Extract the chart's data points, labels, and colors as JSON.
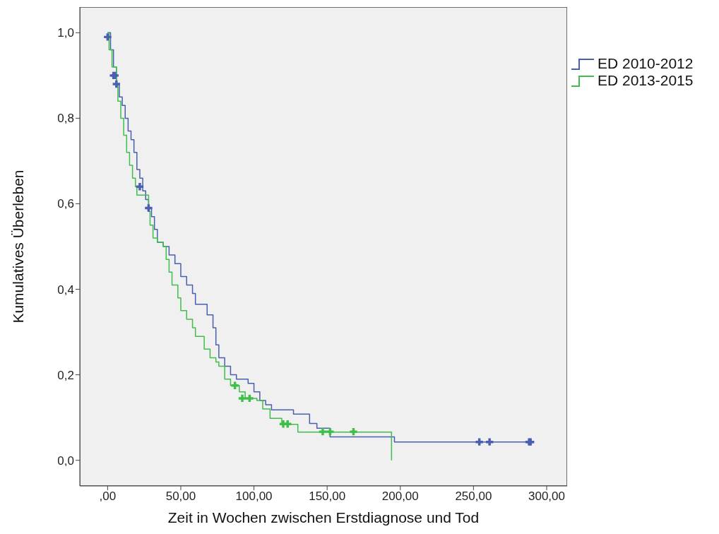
{
  "chart_data": {
    "type": "step",
    "xlabel": "Zeit in Wochen zwischen Erstdiagnose und Tod",
    "ylabel": "Kumulatives Überleben",
    "xlim": [
      -19,
      314
    ],
    "xticks": [
      {
        "value": 0,
        "label": ",00"
      },
      {
        "value": 50,
        "label": "50,00"
      },
      {
        "value": 100,
        "label": "100,00"
      },
      {
        "value": 150,
        "label": "150,00"
      },
      {
        "value": 200,
        "label": "200,00"
      },
      {
        "value": 250,
        "label": "250,00"
      },
      {
        "value": 300,
        "label": "300,00"
      }
    ],
    "ylim": [
      -0.06,
      1.06
    ],
    "yticks": [
      {
        "value": 0,
        "label": "0,0"
      },
      {
        "value": 0.2,
        "label": "0,2"
      },
      {
        "value": 0.4,
        "label": "0,4"
      },
      {
        "value": 0.6,
        "label": "0,6"
      },
      {
        "value": 0.8,
        "label": "0,8"
      },
      {
        "value": 1,
        "label": "1,0"
      }
    ],
    "grid": false,
    "legend": "right",
    "marker": "none",
    "line_style": "solid",
    "series": [
      {
        "name": "ED 2010-2012",
        "color": "#4a5fb0",
        "x": [
          0,
          2,
          4,
          6,
          8,
          10,
          12,
          14,
          16,
          18,
          20,
          22,
          24,
          26,
          28,
          30,
          32,
          34,
          38,
          42,
          46,
          50,
          54,
          58,
          60,
          68,
          72,
          74,
          76,
          80,
          84,
          88,
          96,
          100,
          104,
          108,
          112,
          127,
          138,
          143,
          152,
          196,
          290
        ],
        "values": [
          1,
          0.96,
          0.92,
          0.88,
          0.85,
          0.83,
          0.8,
          0.77,
          0.75,
          0.72,
          0.68,
          0.66,
          0.63,
          0.61,
          0.59,
          0.57,
          0.54,
          0.51,
          0.5,
          0.48,
          0.46,
          0.43,
          0.41,
          0.39,
          0.365,
          0.34,
          0.31,
          0.27,
          0.24,
          0.22,
          0.2,
          0.19,
          0.18,
          0.16,
          0.14,
          0.13,
          0.118,
          0.108,
          0.086,
          0.075,
          0.055,
          0.043,
          0.043
        ]
      },
      {
        "name": "ED 2013-2015",
        "color": "#3fbf4a",
        "x": [
          0,
          1,
          3,
          6,
          7,
          9,
          11,
          13,
          15,
          17,
          19,
          20,
          28,
          29,
          31,
          34,
          38,
          40,
          42,
          44,
          48,
          50,
          54,
          58,
          60,
          66,
          70,
          74,
          76,
          80,
          84,
          90,
          94,
          102,
          106,
          111,
          119,
          130,
          194,
          194
        ],
        "values": [
          1,
          0.96,
          0.92,
          0.88,
          0.84,
          0.8,
          0.76,
          0.72,
          0.69,
          0.66,
          0.64,
          0.62,
          0.582,
          0.55,
          0.52,
          0.51,
          0.5,
          0.47,
          0.44,
          0.41,
          0.38,
          0.35,
          0.33,
          0.31,
          0.29,
          0.26,
          0.24,
          0.23,
          0.22,
          0.19,
          0.175,
          0.16,
          0.145,
          0.14,
          0.12,
          0.098,
          0.084,
          0.066,
          0.066,
          0
        ]
      },
      {
        "color": "#4a5fb0",
        "type": "scatter",
        "marker": "cross",
        "x": [
          0,
          4,
          5,
          6,
          22,
          28,
          254,
          261,
          288,
          289
        ],
        "values": [
          0.99,
          0.9,
          0.9,
          0.88,
          0.64,
          0.59,
          0.043,
          0.043,
          0.043,
          0.043
        ]
      },
      {
        "color": "#3fbf4a",
        "type": "scatter",
        "marker": "cross",
        "x": [
          87,
          92,
          97,
          120,
          123,
          147,
          152,
          168
        ],
        "values": [
          0.175,
          0.145,
          0.145,
          0.085,
          0.085,
          0.067,
          0.067,
          0.067
        ]
      }
    ]
  }
}
